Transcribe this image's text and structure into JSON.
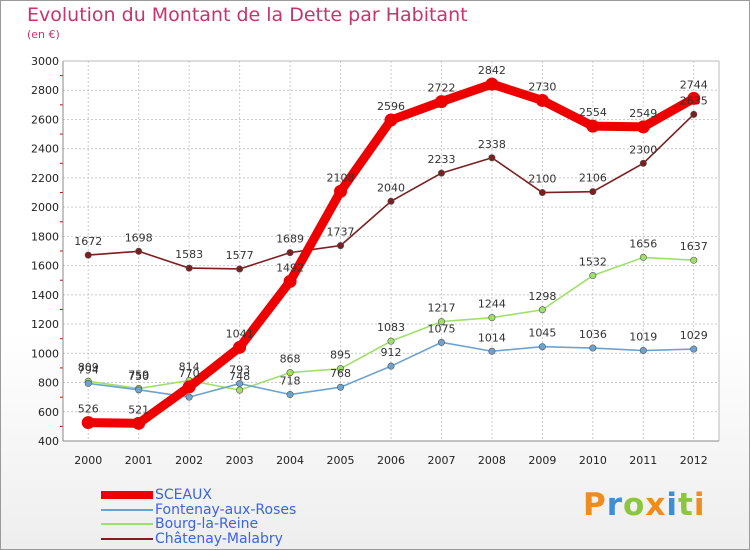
{
  "title": "Evolution du Montant de la Dette par Habitant",
  "unit_label": "(en €)",
  "logo_text": "Proxiti",
  "chart_data": {
    "type": "line",
    "title": "Evolution du Montant de la Dette par Habitant",
    "ylabel": "(en €)",
    "xlabel": "",
    "x": [
      "2000",
      "2001",
      "2002",
      "2003",
      "2004",
      "2005",
      "2006",
      "2007",
      "2008",
      "2009",
      "2010",
      "2011",
      "2012"
    ],
    "ylim": [
      400,
      3000
    ],
    "yticks": [
      400,
      600,
      800,
      1000,
      1200,
      1400,
      1600,
      1800,
      2000,
      2200,
      2400,
      2600,
      2800,
      3000
    ],
    "grid": true,
    "legend_position": "bottom-left",
    "series": [
      {
        "name": "Châtenay-Malabry",
        "color": "#7b1f1f",
        "values": [
          1672,
          1698,
          1583,
          1577,
          1689,
          1737,
          2040,
          2233,
          2338,
          2100,
          2106,
          2300,
          2635
        ],
        "labels": [
          "1672",
          "1698",
          "1583",
          "1577",
          "1689",
          "1737",
          "2040",
          "2233",
          "2338",
          "2100",
          "2106",
          "2300",
          "2635"
        ]
      },
      {
        "name": "Bourg-la-Reine",
        "color": "#9fe06a",
        "values": [
          809,
          759,
          814,
          748,
          868,
          895,
          1083,
          1217,
          1244,
          1298,
          1532,
          1656,
          1637
        ],
        "labels": [
          "809",
          "759",
          "814",
          "748",
          "868",
          "895",
          "1083",
          "1217",
          "1244",
          "1298",
          "1532",
          "1656",
          "1637"
        ]
      },
      {
        "name": "Fontenay-aux-Roses",
        "color": "#6ea3cf",
        "values": [
          794,
          750,
          700,
          793,
          718,
          768,
          912,
          1075,
          1014,
          1045,
          1036,
          1019,
          1029
        ],
        "labels": [
          "794",
          "750",
          "",
          "793",
          "718",
          "768",
          "912",
          "1075",
          "1014",
          "1045",
          "1036",
          "1019",
          "1029"
        ]
      },
      {
        "name": "SCEAUX",
        "color": "#ee0000",
        "values": [
          526,
          521,
          770,
          1041,
          1492,
          2108,
          2596,
          2722,
          2842,
          2730,
          2554,
          2549,
          2744
        ],
        "labels": [
          "526",
          "521",
          "770",
          "1041",
          "1492",
          "2108",
          "2596",
          "2722",
          "2842",
          "2730",
          "2554",
          "2549",
          "2744"
        ]
      }
    ]
  },
  "legend": [
    {
      "name": "SCEAUX",
      "color": "#ee0000",
      "thick": true
    },
    {
      "name": "Fontenay-aux-Roses",
      "color": "#6ea3cf",
      "thick": false
    },
    {
      "name": "Bourg-la-Reine",
      "color": "#9fe06a",
      "thick": false
    },
    {
      "name": "Châtenay-Malabry",
      "color": "#7b1f1f",
      "thick": false
    }
  ]
}
